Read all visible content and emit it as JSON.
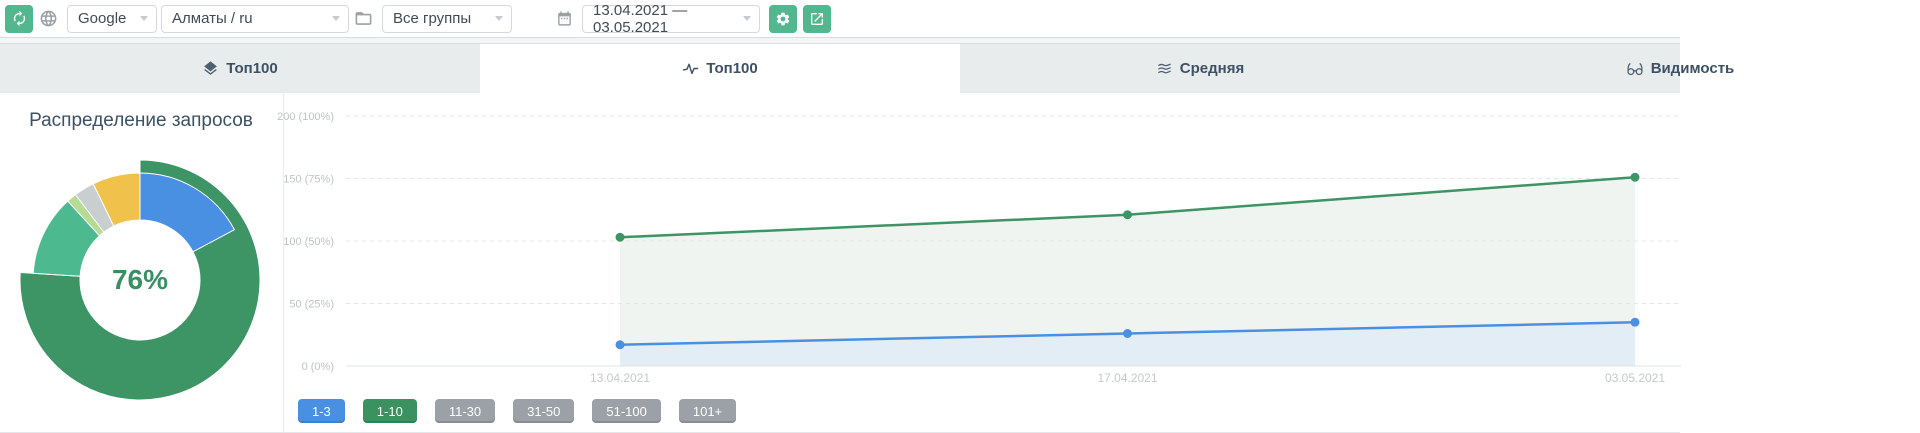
{
  "toolbar": {
    "search_engine": "Google",
    "region": "Алматы / ru",
    "group": "Все группы",
    "date_range": "13.04.2021 — 03.05.2021"
  },
  "tabs": [
    {
      "label": "Топ100",
      "icon": "layers-icon",
      "active": false
    },
    {
      "label": "Топ100",
      "icon": "activity-icon",
      "active": true
    },
    {
      "label": "Средняя",
      "icon": "average-icon",
      "active": false
    },
    {
      "label": "Видимость",
      "icon": "glasses-icon",
      "active": false
    }
  ],
  "chart_data": [
    {
      "type": "pie",
      "title": "Распределение запросов",
      "center_label": "76%",
      "units": "percent",
      "segments": [
        {
          "label": "1-10",
          "value": 76,
          "color": "#3d9464",
          "outer_radius": 120
        },
        {
          "label": "11-30",
          "value": 12.2,
          "color": "#4cb98f",
          "outer_radius": 107
        },
        {
          "label": "",
          "value": 1.5,
          "color": "#b6dc94",
          "outer_radius": 107
        },
        {
          "label": "",
          "value": 3.1,
          "color": "#c9cfd1",
          "outer_radius": 107
        },
        {
          "label": "",
          "value": 7.2,
          "color": "#f0c24b",
          "outer_radius": 107
        }
      ],
      "overlay_segment": {
        "label": "1-3",
        "value": 17.2,
        "color": "#4a90e2",
        "outer_radius": 107
      }
    },
    {
      "type": "line",
      "x_labels": [
        "13.04.2021",
        "17.04.2021",
        "03.05.2021"
      ],
      "ylim": [
        0,
        200
      ],
      "grid": true,
      "y_ticks": [
        {
          "value": 200,
          "label": "200 (100%)"
        },
        {
          "value": 150,
          "label": "150 (75%)"
        },
        {
          "value": 100,
          "label": "100 (50%)"
        },
        {
          "value": 50,
          "label": "50 (25%)"
        },
        {
          "value": 0,
          "label": "0 (0%)"
        }
      ],
      "series": [
        {
          "name": "1-10",
          "color": "#3d9464",
          "fill": "#eff4f0",
          "values": [
            103,
            121,
            151
          ]
        },
        {
          "name": "1-3",
          "color": "#4a90e2",
          "fill": "#e3edf5",
          "values": [
            17,
            26,
            35
          ]
        }
      ]
    }
  ],
  "legend": {
    "buttons": [
      {
        "label": "1-3",
        "color": "#4a90e2"
      },
      {
        "label": "1-10",
        "color": "#3b9260"
      },
      {
        "label": "11-30",
        "color": "#9ba1a6"
      },
      {
        "label": "31-50",
        "color": "#9ba1a6"
      },
      {
        "label": "51-100",
        "color": "#9ba1a6"
      },
      {
        "label": "101+",
        "color": "#9ba1a6"
      }
    ]
  },
  "colors": {
    "accent_teal": "#52b78f",
    "tab_text": "#3e5164",
    "axis_label": "#bdc3c8"
  }
}
